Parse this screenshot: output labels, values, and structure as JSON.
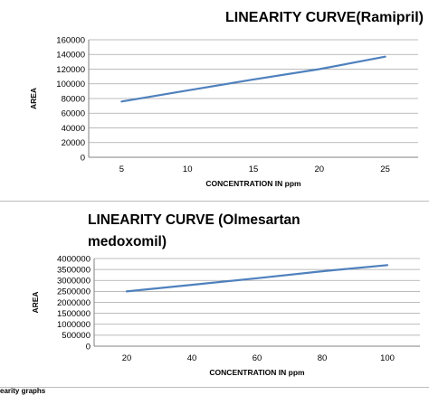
{
  "chart_data": [
    {
      "type": "line",
      "title": "LINEARITY CURVE(Ramipril)",
      "xlabel": "CONCENTRATION IN ppm",
      "ylabel": "AREA",
      "x": [
        5,
        10,
        15,
        20,
        25
      ],
      "xticks": [
        "5",
        "10",
        "15",
        "20",
        "25"
      ],
      "series": [
        {
          "values": [
            76000,
            91000,
            106000,
            120000,
            137000
          ]
        }
      ],
      "ylim": [
        0,
        160000
      ],
      "yticks": [
        "0",
        "20000",
        "40000",
        "60000",
        "80000",
        "100000",
        "120000",
        "140000",
        "160000"
      ],
      "grid": true,
      "color": "#4f81bd"
    },
    {
      "type": "line",
      "title": "LINEARITY CURVE (Olmesartan medoxomil)",
      "title_lines": [
        "LINEARITY CURVE (Olmesartan",
        "medoxomil)"
      ],
      "xlabel": "CONCENTRATION IN ppm",
      "ylabel": "AREA",
      "x": [
        20,
        40,
        60,
        80,
        100
      ],
      "xticks": [
        "20",
        "40",
        "60",
        "80",
        "100"
      ],
      "series": [
        {
          "values": [
            2500000,
            2800000,
            3100000,
            3420000,
            3700000
          ]
        }
      ],
      "ylim": [
        0,
        4000000
      ],
      "yticks": [
        "0",
        "500000",
        "1000000",
        "1500000",
        "2000000",
        "2500000",
        "3000000",
        "3500000",
        "4000000"
      ],
      "grid": true,
      "color": "#4f81bd"
    }
  ],
  "caption": "earity graphs"
}
